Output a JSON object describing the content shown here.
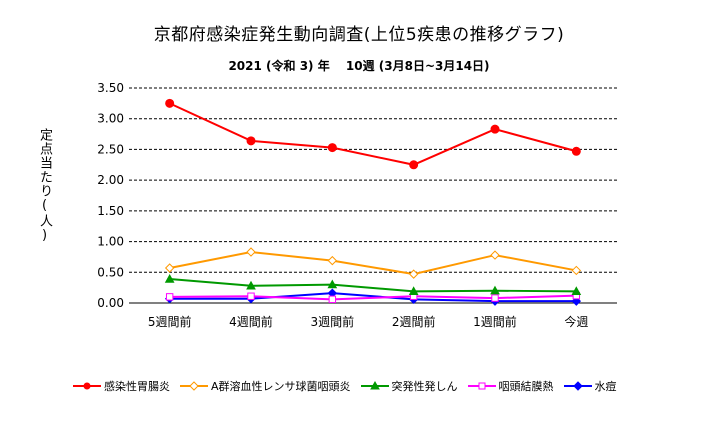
{
  "chart_data": {
    "type": "line",
    "title": "京都府感染症発生動向調査(上位5疾患の推移グラフ)",
    "subtitle": "2021 (令和 3) 年　 10週 (3月8日~3月14日)",
    "ylabel": "定点当たり(人)",
    "xlabel": "",
    "categories": [
      "5週間前",
      "4週間前",
      "3週間前",
      "2週間前",
      "1週間前",
      "今週"
    ],
    "ylim": [
      0,
      3.5
    ],
    "yticks": [
      "0.00",
      "0.50",
      "1.00",
      "1.50",
      "2.00",
      "2.50",
      "3.00",
      "3.50"
    ],
    "grid": "horizontal dashed",
    "legend_position": "bottom",
    "series": [
      {
        "name": "感染性胃腸炎",
        "color": "#ff0000",
        "marker": "circle",
        "values": [
          3.25,
          2.64,
          2.53,
          2.25,
          2.83,
          2.47
        ]
      },
      {
        "name": "A群溶血性レンサ球菌咽頭炎",
        "color": "#ff9900",
        "marker": "diamond-open",
        "values": [
          0.57,
          0.83,
          0.69,
          0.47,
          0.78,
          0.53
        ]
      },
      {
        "name": "突発性発しん",
        "color": "#009900",
        "marker": "triangle",
        "values": [
          0.39,
          0.28,
          0.3,
          0.19,
          0.2,
          0.19
        ]
      },
      {
        "name": "咽頭結膜熱",
        "color": "#ff00ff",
        "marker": "square-open",
        "values": [
          0.1,
          0.11,
          0.06,
          0.11,
          0.08,
          0.12
        ]
      },
      {
        "name": "水痘",
        "color": "#0000ff",
        "marker": "diamond",
        "values": [
          0.07,
          0.07,
          0.16,
          0.06,
          0.03,
          0.03
        ]
      }
    ]
  }
}
